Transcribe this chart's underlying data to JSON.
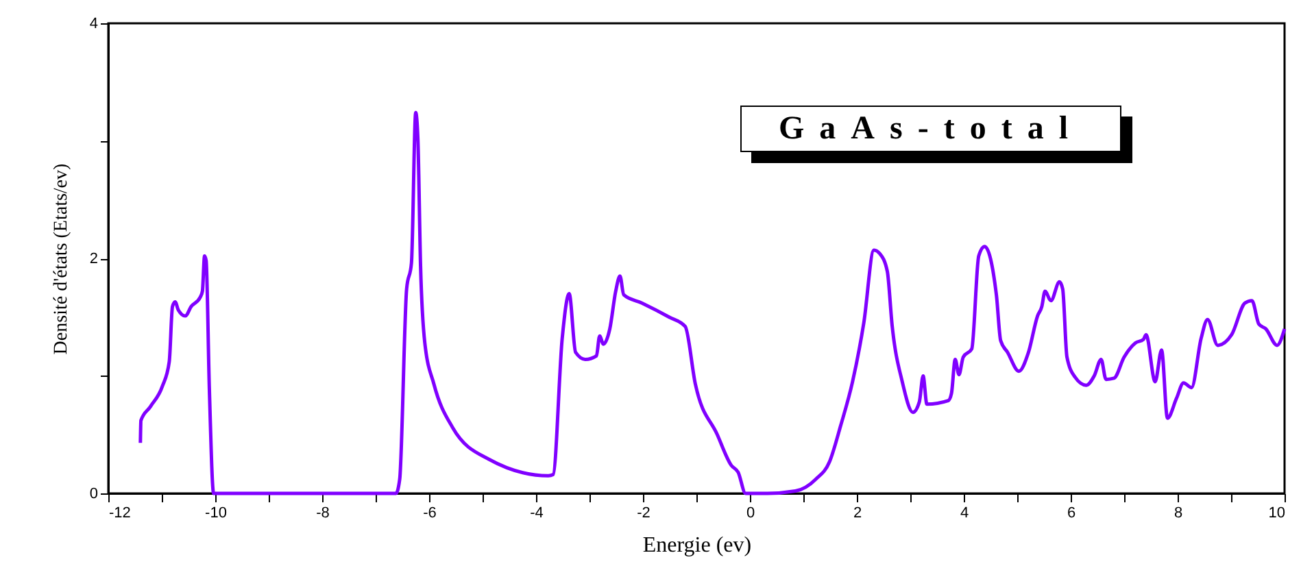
{
  "chart_data": {
    "type": "line",
    "xlabel": "Energie (ev)",
    "ylabel": "Densité d'états (Etats/ev)",
    "annotations": [
      "GaAs-total"
    ],
    "xlim": [
      -12,
      10
    ],
    "ylim": [
      0,
      4
    ],
    "xticks": [
      -12,
      {
        "value": -11,
        "label": null
      },
      -10,
      {
        "value": -9,
        "label": null
      },
      -8,
      {
        "value": -7,
        "label": null
      },
      -6,
      {
        "value": -5,
        "label": null
      },
      -4,
      {
        "value": -3,
        "label": null
      },
      -2,
      {
        "value": -1,
        "label": null
      },
      0,
      {
        "value": 1,
        "label": null
      },
      2,
      {
        "value": 3,
        "label": null
      },
      4,
      {
        "value": 5,
        "label": null
      },
      6,
      {
        "value": 7,
        "label": null
      },
      8,
      {
        "value": 9,
        "label": null
      },
      10
    ],
    "yticks": [
      0,
      {
        "value": 1,
        "label": null
      },
      2,
      {
        "value": 3,
        "label": null
      },
      4
    ],
    "marker": "none",
    "line_style": "solid",
    "series": [
      {
        "color": "#8000ff",
        "x": [
          -11.4,
          -11.39,
          -11.21,
          -10.99,
          -10.86,
          -10.8,
          -10.75,
          -10.69,
          -10.56,
          -10.45,
          -10.28,
          -10.24,
          -10.2,
          -10.17,
          -10.11,
          -10.03,
          -6.62,
          -6.55,
          -6.42,
          -6.33,
          -6.25,
          -6.21,
          -6.16,
          -6.08,
          -5.91,
          -5.56,
          -4.88,
          -3.77,
          -3.68,
          -3.51,
          -3.38,
          -3.26,
          -3.08,
          -2.87,
          -2.81,
          -2.74,
          -2.62,
          -2.51,
          -2.43,
          -2.36,
          -2.02,
          -1.51,
          -1.21,
          -1.02,
          -0.61,
          -0.35,
          -0.22,
          -0.08,
          0.33,
          0.85,
          1.23,
          1.49,
          1.7,
          1.92,
          2.13,
          2.32,
          2.43,
          2.57,
          2.66,
          2.85,
          3.05,
          3.17,
          3.24,
          3.31,
          3.71,
          3.77,
          3.84,
          3.91,
          3.99,
          4.15,
          4.28,
          4.39,
          4.61,
          4.69,
          4.82,
          5.03,
          5.21,
          5.38,
          5.46,
          5.52,
          5.63,
          5.79,
          5.85,
          5.93,
          6.08,
          6.29,
          6.44,
          6.57,
          6.66,
          6.81,
          7.0,
          7.21,
          7.36,
          7.41,
          7.58,
          7.7,
          7.81,
          7.98,
          8.11,
          8.26,
          8.44,
          8.56,
          8.75,
          9.01,
          9.26,
          9.39,
          9.52,
          9.65,
          9.86,
          10.0
        ],
        "values": [
          0.43,
          0.62,
          0.74,
          0.91,
          1.12,
          1.59,
          1.63,
          1.56,
          1.51,
          1.59,
          1.67,
          1.72,
          2.02,
          1.98,
          0.89,
          0,
          0,
          0.12,
          1.74,
          1.96,
          3.24,
          3.02,
          1.94,
          1.28,
          0.93,
          0.56,
          0.29,
          0.15,
          0.16,
          1.32,
          1.7,
          1.2,
          1.14,
          1.17,
          1.34,
          1.27,
          1.4,
          1.72,
          1.85,
          1.69,
          1.62,
          1.5,
          1.42,
          0.93,
          0.5,
          0.24,
          0.18,
          0,
          0,
          0.02,
          0.12,
          0.27,
          0.58,
          0.95,
          1.45,
          2.07,
          2.04,
          1.89,
          1.43,
          0.95,
          0.69,
          0.78,
          1.0,
          0.76,
          0.79,
          0.85,
          1.14,
          1.01,
          1.16,
          1.23,
          2.02,
          2.1,
          1.69,
          1.3,
          1.2,
          1.04,
          1.2,
          1.51,
          1.59,
          1.72,
          1.64,
          1.8,
          1.74,
          1.16,
          0.99,
          0.92,
          1.0,
          1.14,
          0.97,
          0.98,
          1.16,
          1.28,
          1.31,
          1.35,
          0.95,
          1.22,
          0.64,
          0.81,
          0.94,
          0.9,
          1.32,
          1.48,
          1.26,
          1.35,
          1.62,
          1.64,
          1.44,
          1.4,
          1.26,
          1.4
        ]
      }
    ]
  }
}
